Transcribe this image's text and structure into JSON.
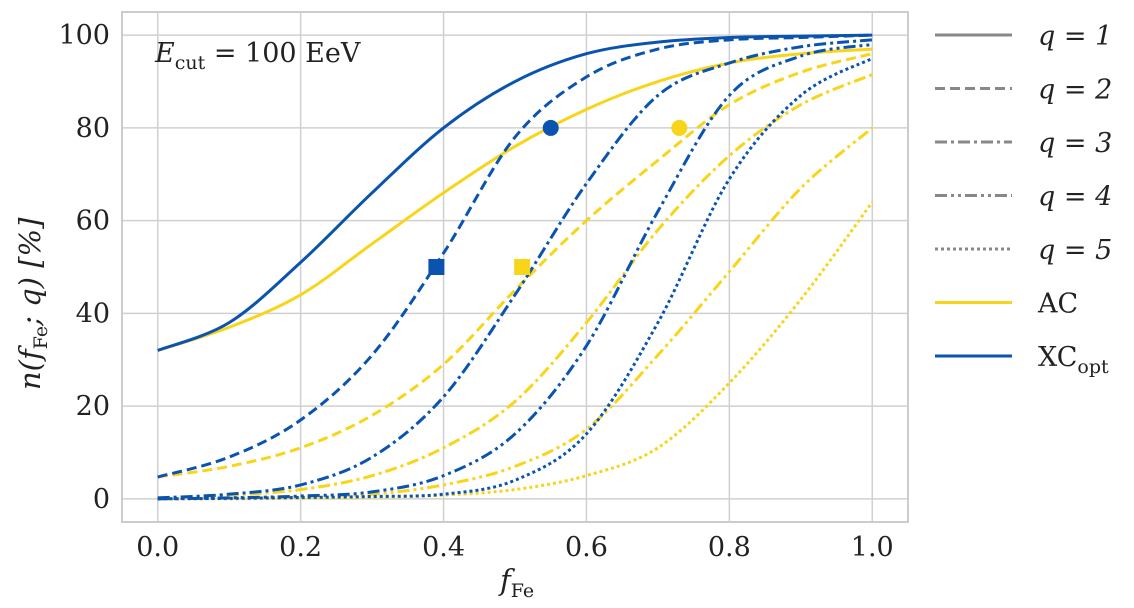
{
  "chart_data": {
    "type": "line",
    "annotation": {
      "var": "E",
      "sub": "cut",
      "rest": " = 100 EeV"
    },
    "xlabel": {
      "var": "f",
      "sub": "Fe"
    },
    "ylabel": {
      "pre": "n(",
      "var": "f",
      "sub": "Fe",
      "post": "; q) [%]"
    },
    "xlim": [
      -0.05,
      1.05
    ],
    "ylim": [
      -5,
      105
    ],
    "xticks": [
      0.0,
      0.2,
      0.4,
      0.6,
      0.8,
      1.0
    ],
    "xtick_labels": [
      "0.0",
      "0.2",
      "0.4",
      "0.6",
      "0.8",
      "1.0"
    ],
    "yticks": [
      0,
      20,
      40,
      60,
      80,
      100
    ],
    "ytick_labels": [
      "0",
      "20",
      "40",
      "60",
      "80",
      "100"
    ],
    "grid": true,
    "legend_position": "outside-right",
    "colors": {
      "AC": "#f8d51a",
      "XC": "#0a54b0",
      "legend_line": "#888888",
      "grid": "#d0d0d0",
      "frame": "#cccccc"
    },
    "legend": [
      {
        "label": "q = 1",
        "kind": "linestyle",
        "style": "solid"
      },
      {
        "label": "q = 2",
        "kind": "linestyle",
        "style": "dashed"
      },
      {
        "label": "q = 3",
        "kind": "linestyle",
        "style": "dashdot"
      },
      {
        "label": "q = 4",
        "kind": "linestyle",
        "style": "dashdotdot"
      },
      {
        "label": "q = 5",
        "kind": "linestyle",
        "style": "dotted"
      },
      {
        "label": "AC",
        "kind": "color",
        "color": "#f8d51a"
      },
      {
        "label": "XC",
        "sub": "opt",
        "kind": "color",
        "color": "#0a54b0"
      }
    ],
    "x": [
      0.0,
      0.1,
      0.2,
      0.3,
      0.4,
      0.5,
      0.6,
      0.7,
      0.8,
      0.9,
      1.0
    ],
    "series": [
      {
        "method": "AC",
        "q": 1,
        "values": [
          32,
          37,
          44,
          55,
          66,
          76,
          84,
          90,
          94,
          96,
          97
        ]
      },
      {
        "method": "AC",
        "q": 2,
        "values": [
          4.7,
          7,
          11,
          18,
          29,
          45,
          60,
          73,
          85,
          92,
          96
        ]
      },
      {
        "method": "AC",
        "q": 3,
        "values": [
          0.2,
          0.8,
          2,
          5,
          11,
          21,
          38,
          58,
          74,
          85,
          91.5
        ]
      },
      {
        "method": "AC",
        "q": 4,
        "values": [
          0,
          0.2,
          0.5,
          1,
          3,
          7,
          15,
          31,
          49,
          67,
          80
        ]
      },
      {
        "method": "AC",
        "q": 5,
        "values": [
          0,
          0,
          0.1,
          0.3,
          0.8,
          2,
          5,
          11,
          25,
          43,
          64
        ]
      },
      {
        "method": "XC",
        "q": 1,
        "values": [
          32,
          38,
          51,
          66,
          80,
          90,
          96,
          98.5,
          99.5,
          99.8,
          100
        ]
      },
      {
        "method": "XC",
        "q": 2,
        "values": [
          4.7,
          9,
          17,
          31,
          53,
          78,
          91,
          97,
          99,
          99.5,
          100
        ]
      },
      {
        "method": "XC",
        "q": 3,
        "values": [
          0.2,
          1,
          3,
          9,
          22,
          44,
          68,
          87,
          94,
          97.5,
          99
        ]
      },
      {
        "method": "XC",
        "q": 4,
        "values": [
          0,
          0.2,
          0.6,
          1.5,
          5,
          14,
          33,
          62,
          87,
          95.5,
          98
        ]
      },
      {
        "method": "XC",
        "q": 5,
        "values": [
          0,
          0.1,
          0.3,
          0.5,
          1,
          4,
          14,
          38,
          69,
          87,
          95
        ]
      }
    ],
    "markers": [
      {
        "method": "XC",
        "shape": "square",
        "x": 0.39,
        "y": 50
      },
      {
        "method": "XC",
        "shape": "circle",
        "x": 0.55,
        "y": 80
      },
      {
        "method": "AC",
        "shape": "square",
        "x": 0.51,
        "y": 50
      },
      {
        "method": "AC",
        "shape": "circle",
        "x": 0.73,
        "y": 80
      }
    ]
  }
}
